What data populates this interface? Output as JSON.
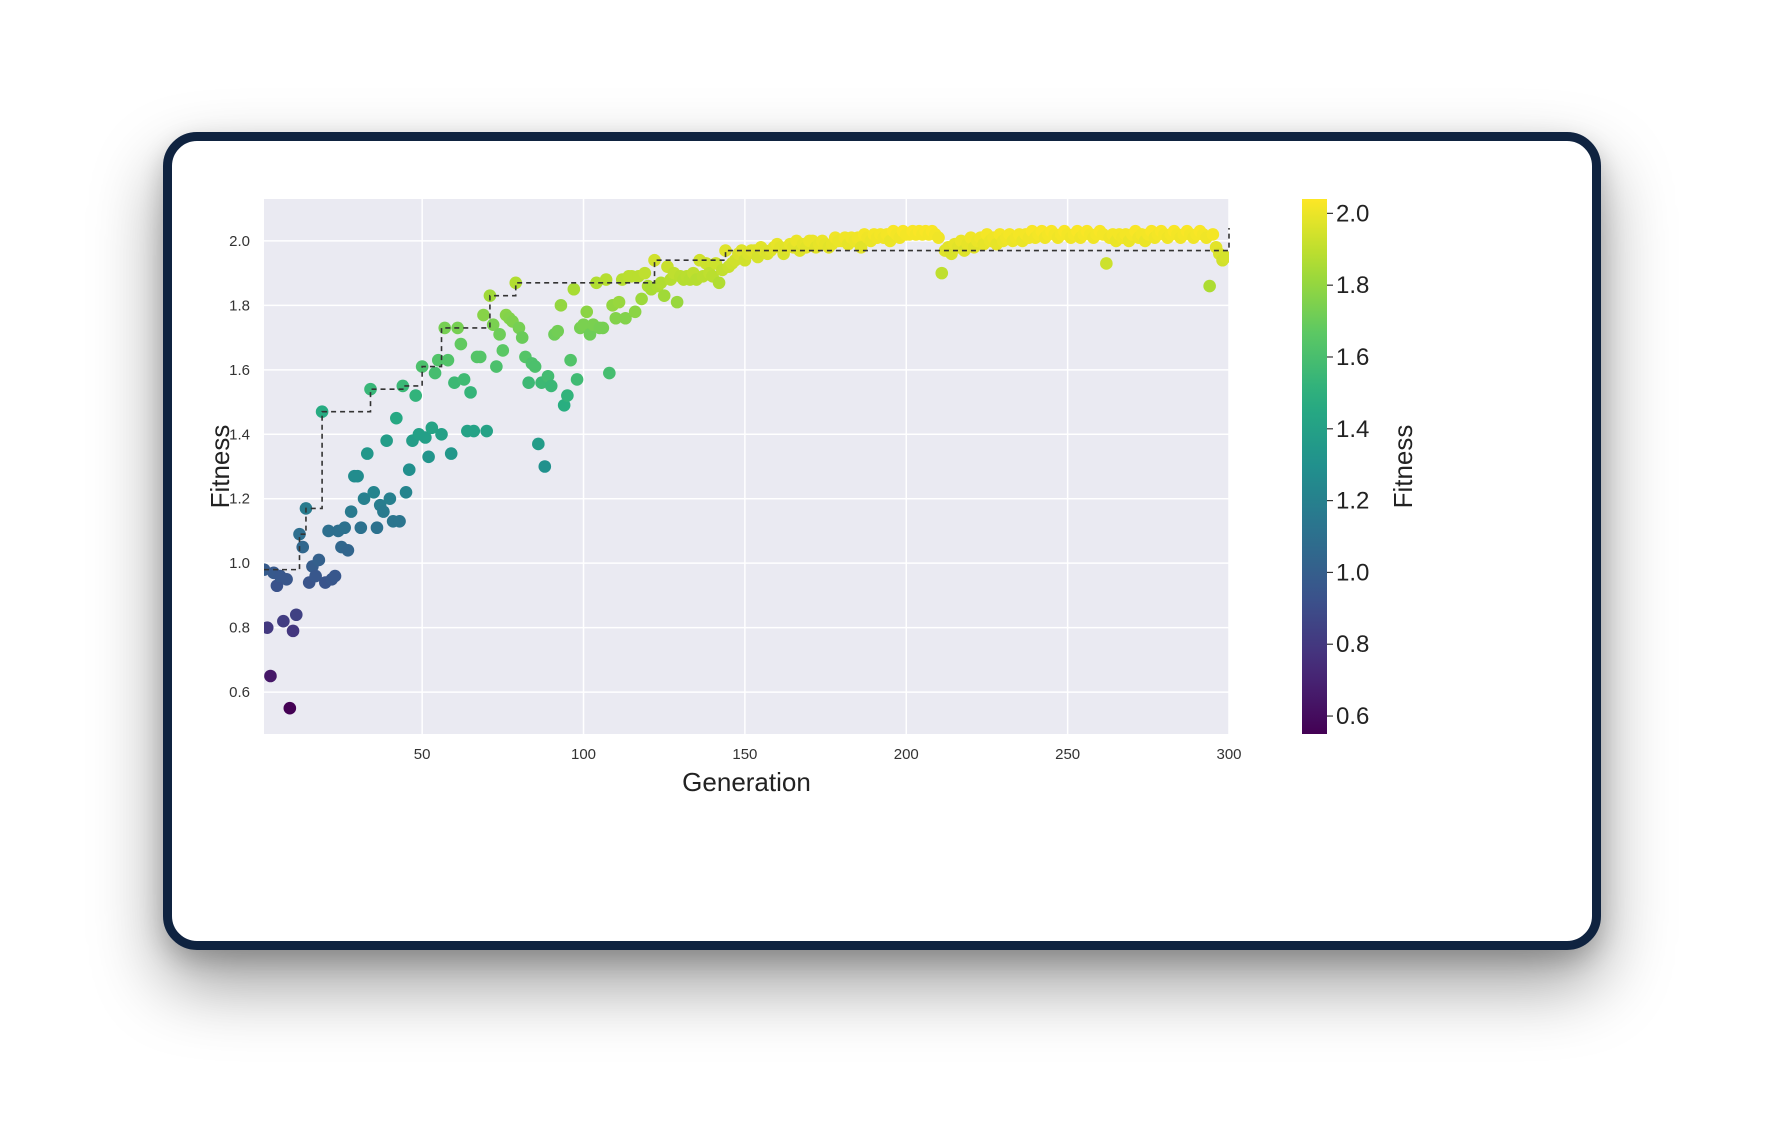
{
  "chart_data": {
    "type": "scatter",
    "xlabel": "Generation",
    "ylabel": "Fitness",
    "xlim": [
      1,
      300
    ],
    "ylim": [
      0.47,
      2.13
    ],
    "xticks": [
      50,
      100,
      150,
      200,
      250,
      300
    ],
    "xtick_labels": [
      "50",
      "100",
      "150",
      "200",
      "250",
      "300"
    ],
    "yticks": [
      0.6,
      0.8,
      1.0,
      1.2,
      1.4,
      1.6,
      1.8,
      2.0
    ],
    "ytick_labels": [
      "0.6",
      "0.8",
      "1.0",
      "1.2",
      "1.4",
      "1.6",
      "1.8",
      "2.0"
    ],
    "grid": true,
    "colorbar": {
      "label": "Fitness",
      "colormap": "viridis",
      "range": [
        0.55,
        2.04
      ],
      "ticks": [
        0.6,
        0.8,
        1.0,
        1.2,
        1.4,
        1.6,
        1.8,
        2.0
      ],
      "tick_labels": [
        "0.6",
        "0.8",
        "1.0",
        "1.2",
        "1.4",
        "1.6",
        "1.8",
        "2.0"
      ]
    },
    "points": [
      [
        1,
        0.98
      ],
      [
        2,
        0.8
      ],
      [
        3,
        0.65
      ],
      [
        4,
        0.97
      ],
      [
        5,
        0.93
      ],
      [
        6,
        0.96
      ],
      [
        7,
        0.82
      ],
      [
        8,
        0.95
      ],
      [
        9,
        0.55
      ],
      [
        10,
        0.79
      ],
      [
        11,
        0.84
      ],
      [
        12,
        1.09
      ],
      [
        13,
        1.05
      ],
      [
        14,
        1.17
      ],
      [
        15,
        0.94
      ],
      [
        16,
        0.99
      ],
      [
        17,
        0.96
      ],
      [
        18,
        1.01
      ],
      [
        19,
        1.47
      ],
      [
        20,
        0.94
      ],
      [
        21,
        1.1
      ],
      [
        22,
        0.95
      ],
      [
        23,
        0.96
      ],
      [
        24,
        1.1
      ],
      [
        25,
        1.05
      ],
      [
        26,
        1.11
      ],
      [
        27,
        1.04
      ],
      [
        28,
        1.16
      ],
      [
        29,
        1.27
      ],
      [
        30,
        1.27
      ],
      [
        31,
        1.11
      ],
      [
        32,
        1.2
      ],
      [
        33,
        1.34
      ],
      [
        34,
        1.54
      ],
      [
        35,
        1.22
      ],
      [
        36,
        1.11
      ],
      [
        37,
        1.18
      ],
      [
        38,
        1.16
      ],
      [
        39,
        1.38
      ],
      [
        40,
        1.2
      ],
      [
        41,
        1.13
      ],
      [
        42,
        1.45
      ],
      [
        43,
        1.13
      ],
      [
        44,
        1.55
      ],
      [
        45,
        1.22
      ],
      [
        46,
        1.29
      ],
      [
        47,
        1.38
      ],
      [
        48,
        1.52
      ],
      [
        49,
        1.4
      ],
      [
        50,
        1.61
      ],
      [
        51,
        1.39
      ],
      [
        52,
        1.33
      ],
      [
        53,
        1.42
      ],
      [
        54,
        1.59
      ],
      [
        55,
        1.63
      ],
      [
        56,
        1.4
      ],
      [
        57,
        1.73
      ],
      [
        58,
        1.63
      ],
      [
        59,
        1.34
      ],
      [
        60,
        1.56
      ],
      [
        61,
        1.73
      ],
      [
        62,
        1.68
      ],
      [
        63,
        1.57
      ],
      [
        64,
        1.41
      ],
      [
        65,
        1.53
      ],
      [
        66,
        1.41
      ],
      [
        67,
        1.64
      ],
      [
        68,
        1.64
      ],
      [
        69,
        1.77
      ],
      [
        70,
        1.41
      ],
      [
        71,
        1.83
      ],
      [
        72,
        1.74
      ],
      [
        73,
        1.61
      ],
      [
        74,
        1.71
      ],
      [
        75,
        1.66
      ],
      [
        76,
        1.77
      ],
      [
        77,
        1.76
      ],
      [
        78,
        1.75
      ],
      [
        79,
        1.87
      ],
      [
        80,
        1.73
      ],
      [
        81,
        1.7
      ],
      [
        82,
        1.64
      ],
      [
        83,
        1.56
      ],
      [
        84,
        1.62
      ],
      [
        85,
        1.61
      ],
      [
        86,
        1.37
      ],
      [
        87,
        1.56
      ],
      [
        88,
        1.3
      ],
      [
        89,
        1.58
      ],
      [
        90,
        1.55
      ],
      [
        91,
        1.71
      ],
      [
        92,
        1.72
      ],
      [
        93,
        1.8
      ],
      [
        94,
        1.49
      ],
      [
        95,
        1.52
      ],
      [
        96,
        1.63
      ],
      [
        97,
        1.85
      ],
      [
        98,
        1.57
      ],
      [
        99,
        1.73
      ],
      [
        100,
        1.74
      ],
      [
        101,
        1.78
      ],
      [
        102,
        1.71
      ],
      [
        103,
        1.74
      ],
      [
        104,
        1.87
      ],
      [
        105,
        1.73
      ],
      [
        106,
        1.73
      ],
      [
        107,
        1.88
      ],
      [
        108,
        1.59
      ],
      [
        109,
        1.8
      ],
      [
        110,
        1.76
      ],
      [
        111,
        1.81
      ],
      [
        112,
        1.88
      ],
      [
        113,
        1.76
      ],
      [
        114,
        1.89
      ],
      [
        115,
        1.89
      ],
      [
        116,
        1.78
      ],
      [
        117,
        1.89
      ],
      [
        118,
        1.82
      ],
      [
        119,
        1.9
      ],
      [
        120,
        1.86
      ],
      [
        121,
        1.85
      ],
      [
        122,
        1.94
      ],
      [
        123,
        1.86
      ],
      [
        124,
        1.87
      ],
      [
        125,
        1.83
      ],
      [
        126,
        1.92
      ],
      [
        127,
        1.88
      ],
      [
        128,
        1.9
      ],
      [
        129,
        1.81
      ],
      [
        130,
        1.89
      ],
      [
        131,
        1.88
      ],
      [
        132,
        1.89
      ],
      [
        133,
        1.88
      ],
      [
        134,
        1.9
      ],
      [
        135,
        1.88
      ],
      [
        136,
        1.94
      ],
      [
        137,
        1.89
      ],
      [
        138,
        1.93
      ],
      [
        139,
        1.9
      ],
      [
        140,
        1.89
      ],
      [
        141,
        1.93
      ],
      [
        142,
        1.87
      ],
      [
        143,
        1.91
      ],
      [
        144,
        1.97
      ],
      [
        145,
        1.92
      ],
      [
        146,
        1.93
      ],
      [
        147,
        1.94
      ],
      [
        148,
        1.96
      ],
      [
        149,
        1.97
      ],
      [
        150,
        1.94
      ],
      [
        151,
        1.96
      ],
      [
        152,
        1.97
      ],
      [
        153,
        1.97
      ],
      [
        154,
        1.95
      ],
      [
        155,
        1.98
      ],
      [
        156,
        1.97
      ],
      [
        157,
        1.96
      ],
      [
        158,
        1.97
      ],
      [
        159,
        1.98
      ],
      [
        160,
        1.99
      ],
      [
        161,
        1.98
      ],
      [
        162,
        1.96
      ],
      [
        163,
        1.98
      ],
      [
        164,
        1.99
      ],
      [
        165,
        1.98
      ],
      [
        166,
        2.0
      ],
      [
        167,
        1.97
      ],
      [
        168,
        1.99
      ],
      [
        169,
        1.98
      ],
      [
        170,
        2.0
      ],
      [
        171,
        2.0
      ],
      [
        172,
        1.98
      ],
      [
        173,
        1.99
      ],
      [
        174,
        2.0
      ],
      [
        175,
        1.99
      ],
      [
        176,
        1.98
      ],
      [
        177,
        1.99
      ],
      [
        178,
        2.01
      ],
      [
        179,
        2.0
      ],
      [
        180,
        2.0
      ],
      [
        181,
        2.01
      ],
      [
        182,
        1.99
      ],
      [
        183,
        2.01
      ],
      [
        184,
        2.0
      ],
      [
        185,
        2.01
      ],
      [
        186,
        1.98
      ],
      [
        187,
        2.02
      ],
      [
        188,
        2.01
      ],
      [
        189,
        2.0
      ],
      [
        190,
        2.02
      ],
      [
        191,
        2.01
      ],
      [
        192,
        2.02
      ],
      [
        193,
        2.01
      ],
      [
        194,
        2.02
      ],
      [
        195,
        2.0
      ],
      [
        196,
        2.03
      ],
      [
        197,
        2.02
      ],
      [
        198,
        2.01
      ],
      [
        199,
        2.03
      ],
      [
        200,
        2.02
      ],
      [
        201,
        2.02
      ],
      [
        202,
        2.03
      ],
      [
        203,
        2.02
      ],
      [
        204,
        2.03
      ],
      [
        205,
        2.02
      ],
      [
        206,
        2.03
      ],
      [
        207,
        2.02
      ],
      [
        208,
        2.03
      ],
      [
        209,
        2.02
      ],
      [
        210,
        2.01
      ],
      [
        211,
        1.9
      ],
      [
        212,
        1.97
      ],
      [
        213,
        1.98
      ],
      [
        214,
        1.96
      ],
      [
        215,
        1.99
      ],
      [
        216,
        1.98
      ],
      [
        217,
        2.0
      ],
      [
        218,
        1.97
      ],
      [
        219,
        1.99
      ],
      [
        220,
        2.01
      ],
      [
        221,
        1.98
      ],
      [
        222,
        2.0
      ],
      [
        223,
        2.01
      ],
      [
        224,
        1.99
      ],
      [
        225,
        2.02
      ],
      [
        226,
        2.0
      ],
      [
        227,
        2.01
      ],
      [
        228,
        1.99
      ],
      [
        229,
        2.02
      ],
      [
        230,
        2.0
      ],
      [
        231,
        2.01
      ],
      [
        232,
        2.02
      ],
      [
        233,
        2.0
      ],
      [
        234,
        2.01
      ],
      [
        235,
        2.02
      ],
      [
        236,
        2.0
      ],
      [
        237,
        2.02
      ],
      [
        238,
        2.01
      ],
      [
        239,
        2.03
      ],
      [
        240,
        2.01
      ],
      [
        241,
        2.02
      ],
      [
        242,
        2.03
      ],
      [
        243,
        2.01
      ],
      [
        244,
        2.02
      ],
      [
        245,
        2.03
      ],
      [
        246,
        2.02
      ],
      [
        247,
        2.01
      ],
      [
        248,
        2.02
      ],
      [
        249,
        2.03
      ],
      [
        250,
        2.02
      ],
      [
        251,
        2.01
      ],
      [
        252,
        2.02
      ],
      [
        253,
        2.03
      ],
      [
        254,
        2.01
      ],
      [
        255,
        2.02
      ],
      [
        256,
        2.03
      ],
      [
        257,
        2.02
      ],
      [
        258,
        2.01
      ],
      [
        259,
        2.02
      ],
      [
        260,
        2.03
      ],
      [
        261,
        2.02
      ],
      [
        262,
        1.93
      ],
      [
        263,
        2.01
      ],
      [
        264,
        2.02
      ],
      [
        265,
        2.0
      ],
      [
        266,
        2.02
      ],
      [
        267,
        2.01
      ],
      [
        268,
        2.02
      ],
      [
        269,
        2.0
      ],
      [
        270,
        2.02
      ],
      [
        271,
        2.03
      ],
      [
        272,
        2.01
      ],
      [
        273,
        2.02
      ],
      [
        274,
        2.0
      ],
      [
        275,
        2.02
      ],
      [
        276,
        2.03
      ],
      [
        277,
        2.01
      ],
      [
        278,
        2.02
      ],
      [
        279,
        2.03
      ],
      [
        280,
        2.02
      ],
      [
        281,
        2.01
      ],
      [
        282,
        2.02
      ],
      [
        283,
        2.03
      ],
      [
        284,
        2.02
      ],
      [
        285,
        2.01
      ],
      [
        286,
        2.02
      ],
      [
        287,
        2.03
      ],
      [
        288,
        2.02
      ],
      [
        289,
        2.01
      ],
      [
        290,
        2.02
      ],
      [
        291,
        2.03
      ],
      [
        292,
        2.02
      ],
      [
        293,
        2.01
      ],
      [
        294,
        1.86
      ],
      [
        295,
        2.02
      ],
      [
        296,
        1.98
      ],
      [
        297,
        1.96
      ],
      [
        298,
        1.94
      ],
      [
        299,
        1.95
      ]
    ],
    "best_so_far": {
      "style": "dashed",
      "color": "#333333",
      "x": [
        1,
        10,
        12,
        14,
        16,
        19,
        34,
        44,
        50,
        56,
        71,
        79,
        122,
        144,
        300
      ],
      "y": [
        0.98,
        0.98,
        1.09,
        1.17,
        1.17,
        1.47,
        1.54,
        1.55,
        1.61,
        1.73,
        1.83,
        1.87,
        1.94,
        1.97,
        2.04
      ]
    },
    "colors": {
      "plot_background": "#eaeaf2",
      "grid": "#ffffff",
      "card_border": "#0f2340"
    }
  }
}
